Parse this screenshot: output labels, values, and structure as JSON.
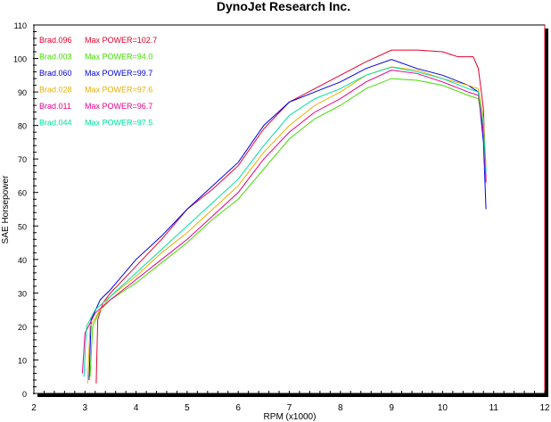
{
  "chart_data": {
    "type": "line",
    "title": "DynoJet Research Inc.",
    "xlabel": "RPM (x1000)",
    "ylabel": "SAE Horsepower",
    "xlim": [
      2,
      12
    ],
    "ylim": [
      0,
      110
    ],
    "xticks": [
      2,
      3,
      4,
      5,
      6,
      7,
      8,
      9,
      10,
      11,
      12
    ],
    "yticks": [
      0,
      10,
      20,
      30,
      40,
      50,
      60,
      70,
      80,
      90,
      100,
      110
    ],
    "grid": true,
    "legend_position": "top-left",
    "series": [
      {
        "name": "Brad.096",
        "label": "Max POWER=102.7",
        "max": 102.7,
        "color": "#e8002a",
        "points": [
          [
            3.22,
            3
          ],
          [
            3.25,
            22
          ],
          [
            3.35,
            27
          ],
          [
            3.5,
            30
          ],
          [
            4,
            38
          ],
          [
            4.5,
            46
          ],
          [
            5,
            55
          ],
          [
            5.5,
            61
          ],
          [
            6,
            68
          ],
          [
            6.5,
            79
          ],
          [
            7,
            87
          ],
          [
            7.5,
            91
          ],
          [
            8,
            95
          ],
          [
            8.5,
            99
          ],
          [
            9,
            102.5
          ],
          [
            9.5,
            102.5
          ],
          [
            10,
            102
          ],
          [
            10.3,
            100.5
          ],
          [
            10.6,
            100.5
          ],
          [
            10.7,
            97
          ],
          [
            10.8,
            85
          ],
          [
            10.85,
            63
          ]
        ]
      },
      {
        "name": "Brad.003",
        "label": "Max POWER=94.0",
        "max": 94.0,
        "color": "#44dd00",
        "points": [
          [
            3.1,
            5
          ],
          [
            3.15,
            20
          ],
          [
            3.3,
            25
          ],
          [
            3.5,
            28
          ],
          [
            4,
            33
          ],
          [
            4.5,
            39
          ],
          [
            5,
            45
          ],
          [
            5.5,
            52
          ],
          [
            6,
            58
          ],
          [
            6.5,
            67
          ],
          [
            7,
            76
          ],
          [
            7.5,
            82
          ],
          [
            8,
            86
          ],
          [
            8.5,
            91
          ],
          [
            9,
            94
          ],
          [
            9.5,
            93.5
          ],
          [
            10,
            92
          ],
          [
            10.5,
            89
          ],
          [
            10.7,
            88
          ],
          [
            10.8,
            80
          ],
          [
            10.85,
            66
          ]
        ]
      },
      {
        "name": "Brad.060",
        "label": "Max POWER=99.7",
        "max": 99.7,
        "color": "#0000e0",
        "points": [
          [
            3.08,
            4
          ],
          [
            3.12,
            22
          ],
          [
            3.3,
            28
          ],
          [
            3.5,
            31
          ],
          [
            4,
            40
          ],
          [
            4.5,
            47
          ],
          [
            5,
            55
          ],
          [
            5.5,
            62
          ],
          [
            6,
            69
          ],
          [
            6.5,
            80
          ],
          [
            7,
            87
          ],
          [
            7.5,
            90
          ],
          [
            8,
            93
          ],
          [
            8.5,
            97
          ],
          [
            9,
            99.7
          ],
          [
            9.5,
            97
          ],
          [
            10,
            95
          ],
          [
            10.5,
            92
          ],
          [
            10.7,
            90
          ],
          [
            10.8,
            75
          ],
          [
            10.85,
            55
          ]
        ]
      },
      {
        "name": "Brad.028",
        "label": "Max POWER=97.6",
        "max": 97.6,
        "color": "#e8b000",
        "points": [
          [
            3.05,
            3
          ],
          [
            3.1,
            20
          ],
          [
            3.3,
            25
          ],
          [
            3.5,
            29
          ],
          [
            4,
            35
          ],
          [
            4.5,
            42
          ],
          [
            5,
            48
          ],
          [
            5.5,
            55
          ],
          [
            6,
            62
          ],
          [
            6.5,
            72
          ],
          [
            7,
            80
          ],
          [
            7.5,
            86
          ],
          [
            8,
            90
          ],
          [
            8.5,
            95
          ],
          [
            9,
            97.5
          ],
          [
            9.5,
            96.5
          ],
          [
            10,
            94
          ],
          [
            10.5,
            92
          ],
          [
            10.7,
            91
          ],
          [
            10.8,
            82
          ],
          [
            10.85,
            68
          ]
        ]
      },
      {
        "name": "Brad.011",
        "label": "Max POWER=96.7",
        "max": 96.7,
        "color": "#e8008a",
        "points": [
          [
            2.95,
            6
          ],
          [
            3.0,
            18
          ],
          [
            3.2,
            24
          ],
          [
            3.5,
            28
          ],
          [
            4,
            34
          ],
          [
            4.5,
            40
          ],
          [
            5,
            46
          ],
          [
            5.5,
            53
          ],
          [
            6,
            60
          ],
          [
            6.5,
            70
          ],
          [
            7,
            78
          ],
          [
            7.5,
            84
          ],
          [
            8,
            88
          ],
          [
            8.5,
            93
          ],
          [
            9,
            96.5
          ],
          [
            9.5,
            95.5
          ],
          [
            10,
            93
          ],
          [
            10.5,
            90
          ],
          [
            10.7,
            89
          ],
          [
            10.8,
            78
          ],
          [
            10.85,
            64
          ]
        ]
      },
      {
        "name": "Brad.044",
        "label": "Max POWER=97.5",
        "max": 97.5,
        "color": "#00e0a0",
        "points": [
          [
            2.98,
            5
          ],
          [
            3.03,
            20
          ],
          [
            3.2,
            25
          ],
          [
            3.5,
            29
          ],
          [
            4,
            36
          ],
          [
            4.5,
            43
          ],
          [
            5,
            50
          ],
          [
            5.5,
            57
          ],
          [
            6,
            64
          ],
          [
            6.5,
            74
          ],
          [
            7,
            83
          ],
          [
            7.5,
            88
          ],
          [
            8,
            91
          ],
          [
            8.5,
            95
          ],
          [
            9,
            97.4
          ],
          [
            9.5,
            96
          ],
          [
            10,
            94
          ],
          [
            10.5,
            91
          ],
          [
            10.7,
            90
          ],
          [
            10.8,
            80
          ],
          [
            10.85,
            66
          ]
        ]
      }
    ]
  }
}
